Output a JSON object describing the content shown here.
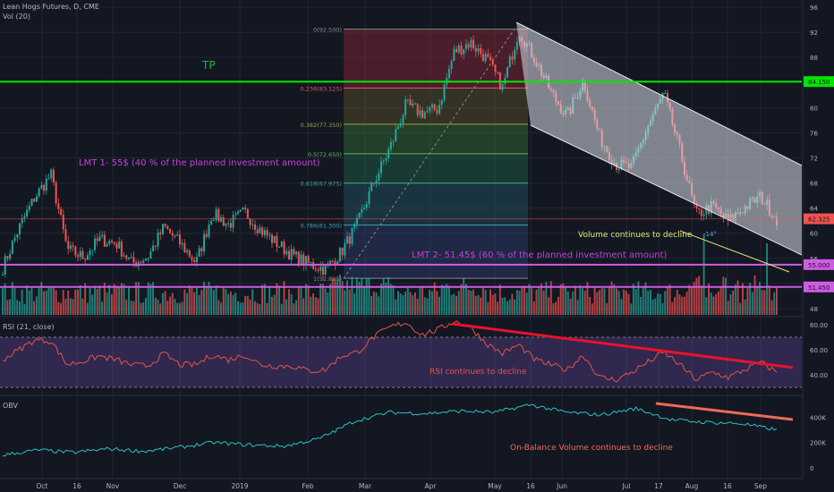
{
  "header": {
    "title": "Lean Hogs Futures, D, CME",
    "volume_label": "Vol (20)"
  },
  "colors": {
    "up": "#26a69a",
    "down": "#ef5350",
    "bg": "#131722",
    "grid": "#232632",
    "tp_line": "#00e600",
    "lmt_line": "#d05ce3",
    "label_purple": "#c243d8",
    "rsi_line": "#e5534b",
    "obv_line": "#2bc0c0",
    "trend_red": "#e8122c",
    "volume_trend": "#e9e57a",
    "channel": "#d9dde6",
    "text_muted": "#b2b5be"
  },
  "chart_data": [
    {
      "type": "candlestick",
      "title": "Lean Hogs Futures, D, CME",
      "ylim": [
        47,
        96
      ],
      "y_ticks": [
        48,
        52,
        56,
        60,
        64,
        68,
        72,
        76,
        80,
        84,
        88,
        92,
        96
      ],
      "x_tick_labels": [
        "Oct",
        "16",
        "Nov",
        "Dec",
        "2019",
        "Feb",
        "Mar",
        "Apr",
        "May",
        "16",
        "Jun",
        "Jul",
        "17",
        "Aug",
        "16",
        "Sep"
      ],
      "series_points": [
        {
          "x": "Sep 2018",
          "y": 54.5
        },
        {
          "x": "Sep 2018",
          "y": 60.8
        },
        {
          "x": "Oct 2018",
          "y": 65.8
        },
        {
          "x": "Oct 2018",
          "y": 69.3
        },
        {
          "x": "Oct 2018",
          "y": 57.4
        },
        {
          "x": "Oct 2018",
          "y": 56.2
        },
        {
          "x": "Nov 2018",
          "y": 59.0
        },
        {
          "x": "Nov 2018",
          "y": 58.5
        },
        {
          "x": "Nov 2018",
          "y": 55.2
        },
        {
          "x": "Dec 2018",
          "y": 56.2
        },
        {
          "x": "Dec 2018",
          "y": 61.0
        },
        {
          "x": "Dec 2018",
          "y": 58.4
        },
        {
          "x": "Dec 2018",
          "y": 55.3
        },
        {
          "x": "Jan 2019",
          "y": 63.2
        },
        {
          "x": "Jan 2019",
          "y": 61.4
        },
        {
          "x": "Jan 2019",
          "y": 63.4
        },
        {
          "x": "Jan 2019",
          "y": 60.5
        },
        {
          "x": "Feb 2019",
          "y": 58.4
        },
        {
          "x": "Feb 2019",
          "y": 56.4
        },
        {
          "x": "Feb 2019",
          "y": 55.1
        },
        {
          "x": "Mar 2019",
          "y": 54.3
        },
        {
          "x": "Mar 2019",
          "y": 57.0
        },
        {
          "x": "Mar 2019",
          "y": 61.5
        },
        {
          "x": "Mar 2019",
          "y": 68.0
        },
        {
          "x": "Mar 2019",
          "y": 73.5
        },
        {
          "x": "Apr 2019",
          "y": 80.4
        },
        {
          "x": "Apr 2019",
          "y": 79.1
        },
        {
          "x": "Apr 2019",
          "y": 79.8
        },
        {
          "x": "Apr 2019",
          "y": 88.9
        },
        {
          "x": "May 2019",
          "y": 90.4
        },
        {
          "x": "May 2019",
          "y": 87.8
        },
        {
          "x": "May 2019",
          "y": 83.2
        },
        {
          "x": "May 2019",
          "y": 92.3
        },
        {
          "x": "May 2019",
          "y": 87.8
        },
        {
          "x": "Jun 2019",
          "y": 82.4
        },
        {
          "x": "Jun 2019",
          "y": 78.6
        },
        {
          "x": "Jun 2019",
          "y": 84.4
        },
        {
          "x": "Jun 2019",
          "y": 75.4
        },
        {
          "x": "Jul 2019",
          "y": 71.0
        },
        {
          "x": "Jul 2019",
          "y": 70.4
        },
        {
          "x": "Jul 2019",
          "y": 77.0
        },
        {
          "x": "Jul 2019",
          "y": 82.2
        },
        {
          "x": "Aug 2019",
          "y": 73.1
        },
        {
          "x": "Aug 2019",
          "y": 62.9
        },
        {
          "x": "Aug 2019",
          "y": 64.3
        },
        {
          "x": "Aug 2019",
          "y": 61.9
        },
        {
          "x": "Aug 2019",
          "y": 64.1
        },
        {
          "x": "Sep 2019",
          "y": 65.8
        },
        {
          "x": "Sep 2019",
          "y": 62.3
        }
      ],
      "last_price": "62.325",
      "fibonacci": [
        {
          "ratio": "0",
          "price": "92.500",
          "label": "0(92.500)"
        },
        {
          "ratio": "0.236",
          "price": "83.125",
          "label": "0.236(83.125)"
        },
        {
          "ratio": "0.382",
          "price": "77.350",
          "label": "0.382(77.350)"
        },
        {
          "ratio": "0.5",
          "price": "72.650",
          "label": "0.5(72.650)"
        },
        {
          "ratio": "0.618",
          "price": "67.975",
          "label": "0.618(67.975)"
        },
        {
          "ratio": "0.786",
          "price": "61.300",
          "label": "0.786(61.300)"
        },
        {
          "ratio": "1",
          "price": "52.825",
          "label": "1(52.825)"
        }
      ],
      "levels": [
        {
          "name": "TP",
          "price": "84.150"
        },
        {
          "name": "LMT 1",
          "price": "55.000"
        },
        {
          "name": "LMT 2",
          "price": "51.450"
        }
      ],
      "annotations": [
        "TP",
        "LMT 1- 55$ (40 % of the planned investment amount)",
        "LMT 2- 51.45$ (60 % of the planned investment amount)",
        "Volume continues to decline",
        "-14°",
        "RSI continues to decline"
      ]
    },
    {
      "type": "line",
      "title": "RSI (21, close)",
      "ylim": [
        25,
        85
      ],
      "y_ticks": [
        "40.00",
        "60.00",
        "80.00"
      ],
      "band": [
        30,
        70
      ],
      "series_points": [
        {
          "x": "Sep 2018",
          "y": 52
        },
        {
          "x": "Sep 2018",
          "y": 60
        },
        {
          "x": "Oct 2018",
          "y": 68
        },
        {
          "x": "Oct 2018",
          "y": 67
        },
        {
          "x": "Oct 2018",
          "y": 48
        },
        {
          "x": "Oct 2018",
          "y": 51
        },
        {
          "x": "Nov 2018",
          "y": 55
        },
        {
          "x": "Nov 2018",
          "y": 52
        },
        {
          "x": "Nov 2018",
          "y": 48
        },
        {
          "x": "Dec 2018",
          "y": 47
        },
        {
          "x": "Dec 2018",
          "y": 57
        },
        {
          "x": "Dec 2018",
          "y": 48
        },
        {
          "x": "Dec 2018",
          "y": 48
        },
        {
          "x": "Jan 2019",
          "y": 56
        },
        {
          "x": "Jan 2019",
          "y": 52
        },
        {
          "x": "Jan 2019",
          "y": 56
        },
        {
          "x": "Jan 2019",
          "y": 48
        },
        {
          "x": "Feb 2019",
          "y": 47
        },
        {
          "x": "Feb 2019",
          "y": 47
        },
        {
          "x": "Feb 2019",
          "y": 43
        },
        {
          "x": "Mar 2019",
          "y": 44
        },
        {
          "x": "Mar 2019",
          "y": 55
        },
        {
          "x": "Mar 2019",
          "y": 58
        },
        {
          "x": "Mar 2019",
          "y": 70
        },
        {
          "x": "Mar 2019",
          "y": 78
        },
        {
          "x": "Apr 2019",
          "y": 82
        },
        {
          "x": "Apr 2019",
          "y": 72
        },
        {
          "x": "Apr 2019",
          "y": 76
        },
        {
          "x": "Apr 2019",
          "y": 83
        },
        {
          "x": "May 2019",
          "y": 78
        },
        {
          "x": "May 2019",
          "y": 65
        },
        {
          "x": "May 2019",
          "y": 57
        },
        {
          "x": "May 2019",
          "y": 64
        },
        {
          "x": "May 2019",
          "y": 52
        },
        {
          "x": "Jun 2019",
          "y": 48
        },
        {
          "x": "Jun 2019",
          "y": 44
        },
        {
          "x": "Jun 2019",
          "y": 56
        },
        {
          "x": "Jun 2019",
          "y": 38
        },
        {
          "x": "Jul 2019",
          "y": 36
        },
        {
          "x": "Jul 2019",
          "y": 42
        },
        {
          "x": "Jul 2019",
          "y": 50
        },
        {
          "x": "Jul 2019",
          "y": 58
        },
        {
          "x": "Aug 2019",
          "y": 48
        },
        {
          "x": "Aug 2019",
          "y": 36
        },
        {
          "x": "Aug 2019",
          "y": 42
        },
        {
          "x": "Aug 2019",
          "y": 38
        },
        {
          "x": "Aug 2019",
          "y": 44
        },
        {
          "x": "Sep 2019",
          "y": 50
        },
        {
          "x": "Sep 2019",
          "y": 42
        }
      ],
      "annotations": [
        "RSI continues to decline"
      ]
    },
    {
      "type": "line",
      "title": "OBV",
      "y_ticks": [
        "0",
        "200K",
        "400K"
      ],
      "series_points": [
        {
          "x": "Sep 2018",
          "y": 100
        },
        {
          "x": "Oct 2018",
          "y": 140
        },
        {
          "x": "Oct 2018",
          "y": 120
        },
        {
          "x": "Nov 2018",
          "y": 150
        },
        {
          "x": "Dec 2018",
          "y": 130
        },
        {
          "x": "Dec 2018",
          "y": 160
        },
        {
          "x": "Jan 2019",
          "y": 200
        },
        {
          "x": "Jan 2019",
          "y": 180
        },
        {
          "x": "Feb 2019",
          "y": 170
        },
        {
          "x": "Mar 2019",
          "y": 230
        },
        {
          "x": "Mar 2019",
          "y": 370
        },
        {
          "x": "Apr 2019",
          "y": 440
        },
        {
          "x": "Apr 2019",
          "y": 430
        },
        {
          "x": "May 2019",
          "y": 450
        },
        {
          "x": "May 2019",
          "y": 440
        },
        {
          "x": "Jun 2019",
          "y": 500
        },
        {
          "x": "Jun 2019",
          "y": 440
        },
        {
          "x": "Jul 2019",
          "y": 420
        },
        {
          "x": "Jul 2019",
          "y": 470
        },
        {
          "x": "Aug 2019",
          "y": 380
        },
        {
          "x": "Aug 2019",
          "y": 360
        },
        {
          "x": "Sep 2019",
          "y": 350
        },
        {
          "x": "Sep 2019",
          "y": 300
        }
      ],
      "annotations": [
        "On-Balance Volume continues to decline"
      ]
    }
  ]
}
